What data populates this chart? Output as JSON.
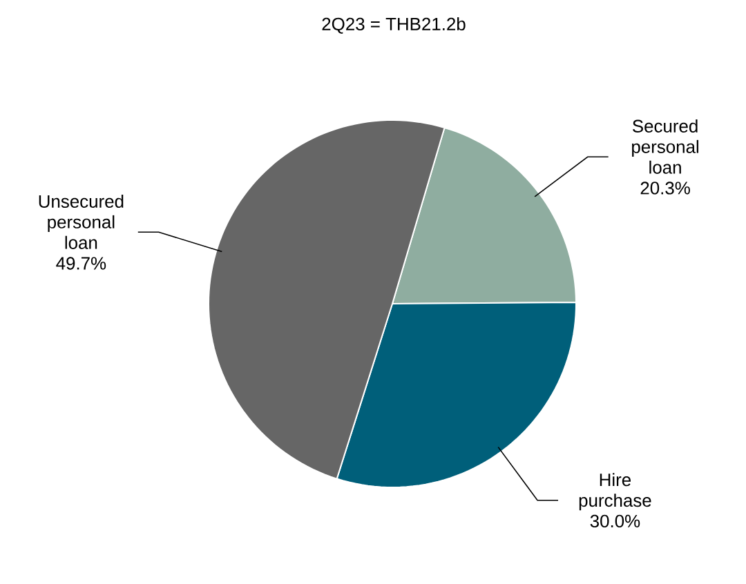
{
  "chart_data": {
    "type": "pie",
    "title": "2Q23 = THB21.2b",
    "categories": [
      "Secured personal loan",
      "Hire purchase",
      "Unsecured personal loan"
    ],
    "values": [
      20.3,
      30.0,
      49.7
    ],
    "value_labels": [
      "20.3%",
      "30.0%",
      "49.7%"
    ],
    "colors": [
      "#8fada0",
      "#005f7a",
      "#666666"
    ]
  }
}
